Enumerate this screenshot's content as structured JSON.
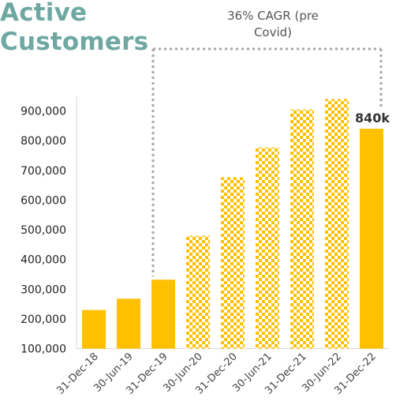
{
  "title_lines": [
    "Active",
    "Customers"
  ],
  "colors": {
    "bar": "#ffc000",
    "title": "#6fa8a3",
    "axis": "#d9d9d9",
    "bracket": "#a6a6a6"
  },
  "chart_data": {
    "type": "bar",
    "title": "Active Customers",
    "xlabel": "",
    "ylabel": "",
    "ylim": [
      100000,
      950000
    ],
    "yticks": [
      100000,
      200000,
      300000,
      400000,
      500000,
      600000,
      700000,
      800000,
      900000
    ],
    "ytick_labels": [
      "100,000",
      "200,000",
      "300,000",
      "400,000",
      "500,000",
      "600,000",
      "700,000",
      "800,000",
      "900,000"
    ],
    "categories": [
      "31-Dec-18",
      "30-Jun-19",
      "31-Dec-19",
      "30-Jun-20",
      "31-Dec-20",
      "30-Jun-21",
      "31-Dec-21",
      "30-Jun-22",
      "31-Dec-22"
    ],
    "values": [
      230000,
      268000,
      332000,
      480000,
      677000,
      777000,
      905000,
      940000,
      840000
    ],
    "bar_style": [
      "solid",
      "solid",
      "solid",
      "checkered",
      "checkered",
      "checkered",
      "checkered",
      "checkered",
      "solid"
    ],
    "data_labels": [
      "",
      "",
      "",
      "",
      "",
      "",
      "",
      "",
      "840k"
    ],
    "annotation": {
      "lines": [
        "36% CAGR (pre",
        "Covid)"
      ],
      "from_category": "31-Dec-19",
      "to_category": "31-Dec-22"
    },
    "grid": false,
    "legend": "none"
  }
}
